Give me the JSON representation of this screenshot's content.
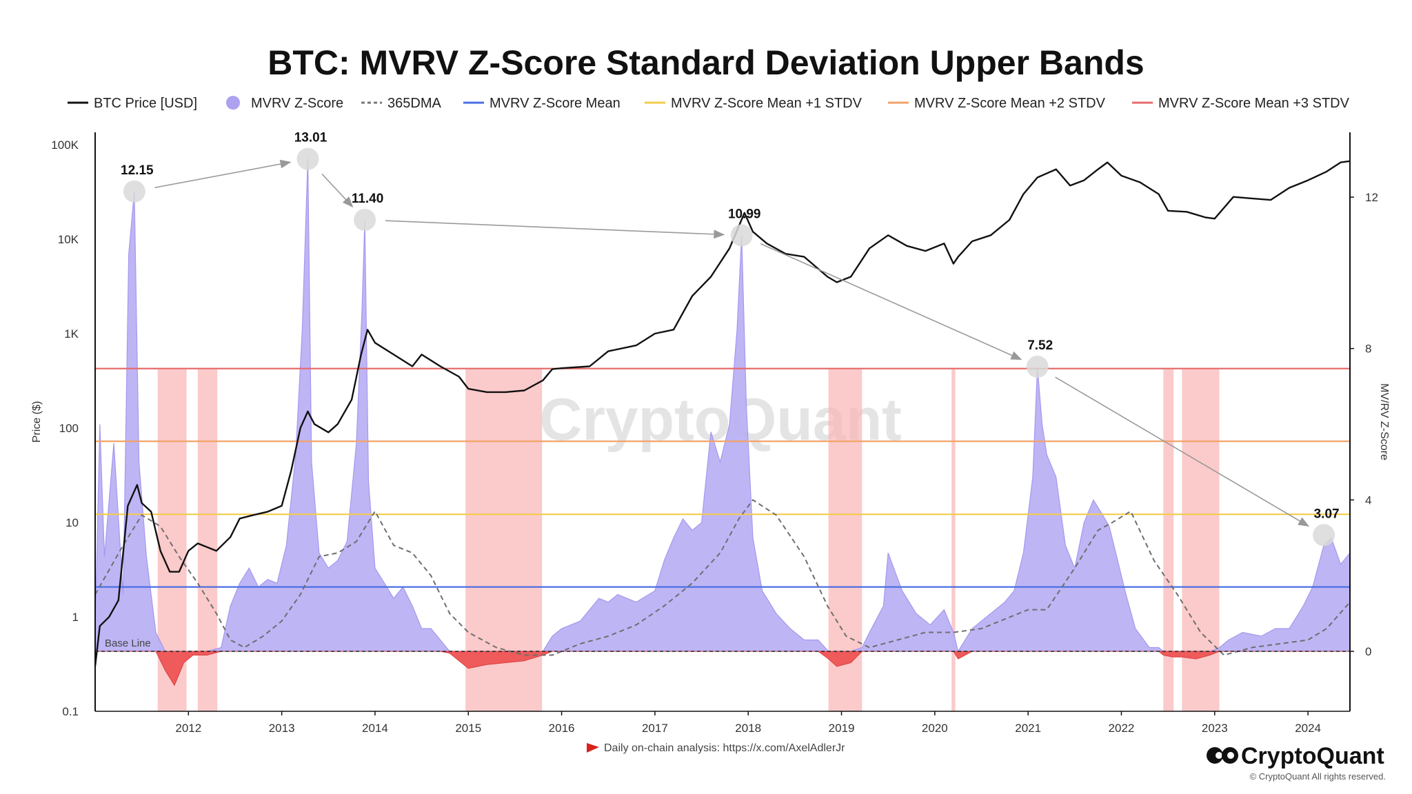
{
  "chart_data": {
    "type": "line",
    "title": "BTC: MVRV Z-Score Standard Deviation Upper Bands",
    "ylabel_left": "Price ($)",
    "ylabel_right": "MV/RV Z-Score",
    "y_left_ticks": [
      "0.1",
      "1",
      "10",
      "100",
      "1K",
      "10K",
      "100K"
    ],
    "y_left_range": [
      0.1,
      100000
    ],
    "y_left_scale": "log",
    "y_right_ticks": [
      "0",
      "4",
      "8",
      "12"
    ],
    "y_right_range": [
      -1.6,
      13.8
    ],
    "x_ticks": [
      "2012",
      "2013",
      "2014",
      "2015",
      "2016",
      "2017",
      "2018",
      "2019",
      "2020",
      "2021",
      "2022",
      "2023",
      "2024"
    ],
    "x_range": [
      2011.0,
      2024.45
    ],
    "legend": [
      {
        "label": "BTC Price [USD]",
        "color": "#111111",
        "style": "line"
      },
      {
        "label": "MVRV Z-Score",
        "color": "#ada2f0",
        "style": "dot"
      },
      {
        "label": "365DMA",
        "color": "#777777",
        "style": "dashed"
      },
      {
        "label": "MVRV Z-Score Mean",
        "color": "#4a6fe3",
        "style": "line"
      },
      {
        "label": "MVRV Z-Score Mean +1 STDV",
        "color": "#f2cc4b",
        "style": "line"
      },
      {
        "label": "MVRV Z-Score Mean +2 STDV",
        "color": "#f2a268",
        "style": "line"
      },
      {
        "label": "MVRV Z-Score Mean +3 STDV",
        "color": "#e56c6c",
        "style": "line"
      }
    ],
    "horizontal_bands": [
      {
        "name": "MVRV Z-Score Mean",
        "value": 1.7,
        "color": "#4a6fe3"
      },
      {
        "name": "MVRV Z-Score Mean +1 STDV",
        "value": 3.62,
        "color": "#f2cc4b"
      },
      {
        "name": "MVRV Z-Score Mean +2 STDV",
        "value": 5.55,
        "color": "#f2a268"
      },
      {
        "name": "MVRV Z-Score Mean +3 STDV",
        "value": 7.47,
        "color": "#e56c6c"
      }
    ],
    "base_line": {
      "label": "Base Line",
      "value": 0
    },
    "peaks": [
      {
        "label": "12.15",
        "x": 2011.42,
        "value": 12.15
      },
      {
        "label": "13.01",
        "x": 2013.28,
        "value": 13.01
      },
      {
        "label": "11.40",
        "x": 2013.89,
        "value": 11.4
      },
      {
        "label": "10.99",
        "x": 2017.93,
        "value": 10.99
      },
      {
        "label": "7.52",
        "x": 2021.1,
        "value": 7.52
      },
      {
        "label": "3.07",
        "x": 2024.17,
        "value": 3.07
      }
    ],
    "red_zones": [
      [
        2011.67,
        2011.98
      ],
      [
        2012.1,
        2012.31
      ],
      [
        2014.97,
        2015.79
      ],
      [
        2018.86,
        2019.22
      ],
      [
        2020.18,
        2020.22
      ],
      [
        2022.45,
        2022.56
      ],
      [
        2022.65,
        2023.05
      ]
    ],
    "mvrv_series": {
      "x": [
        2011.0,
        2011.05,
        2011.1,
        2011.2,
        2011.3,
        2011.36,
        2011.42,
        2011.47,
        2011.55,
        2011.65,
        2011.75,
        2011.85,
        2011.95,
        2012.05,
        2012.2,
        2012.35,
        2012.45,
        2012.55,
        2012.65,
        2012.75,
        2012.85,
        2012.95,
        2013.05,
        2013.15,
        2013.22,
        2013.28,
        2013.32,
        2013.4,
        2013.5,
        2013.6,
        2013.7,
        2013.8,
        2013.86,
        2013.89,
        2013.93,
        2014.0,
        2014.1,
        2014.2,
        2014.3,
        2014.4,
        2014.5,
        2014.6,
        2014.7,
        2014.8,
        2014.9,
        2015.0,
        2015.2,
        2015.4,
        2015.6,
        2015.8,
        2015.9,
        2016.0,
        2016.2,
        2016.4,
        2016.5,
        2016.6,
        2016.8,
        2017.0,
        2017.1,
        2017.2,
        2017.3,
        2017.4,
        2017.5,
        2017.6,
        2017.7,
        2017.8,
        2017.88,
        2017.93,
        2017.98,
        2018.05,
        2018.15,
        2018.3,
        2018.45,
        2018.6,
        2018.75,
        2018.86,
        2018.95,
        2019.1,
        2019.22,
        2019.3,
        2019.45,
        2019.5,
        2019.65,
        2019.8,
        2019.95,
        2020.1,
        2020.2,
        2020.25,
        2020.4,
        2020.6,
        2020.75,
        2020.85,
        2020.95,
        2021.05,
        2021.1,
        2021.15,
        2021.2,
        2021.3,
        2021.4,
        2021.5,
        2021.6,
        2021.7,
        2021.8,
        2021.87,
        2021.95,
        2022.05,
        2022.15,
        2022.3,
        2022.4,
        2022.45,
        2022.55,
        2022.65,
        2022.8,
        2022.95,
        2023.05,
        2023.15,
        2023.3,
        2023.5,
        2023.65,
        2023.8,
        2023.95,
        2024.05,
        2024.17,
        2024.25,
        2024.35,
        2024.45
      ],
      "y": [
        0.6,
        6.0,
        2.5,
        5.5,
        1.5,
        10.5,
        12.15,
        5.0,
        2.5,
        0.5,
        -0.5,
        -0.9,
        -0.3,
        -0.1,
        -0.1,
        0.1,
        1.2,
        1.8,
        2.2,
        1.7,
        1.9,
        1.8,
        2.8,
        5.2,
        8.5,
        13.01,
        5.0,
        2.6,
        2.2,
        2.4,
        2.9,
        5.5,
        9.0,
        11.4,
        4.5,
        2.2,
        1.8,
        1.4,
        1.7,
        1.2,
        0.6,
        0.6,
        0.3,
        -0.05,
        -0.25,
        -0.45,
        -0.35,
        -0.3,
        -0.25,
        -0.1,
        0.4,
        0.6,
        0.8,
        1.4,
        1.3,
        1.5,
        1.3,
        1.6,
        2.4,
        3.0,
        3.5,
        3.2,
        3.4,
        5.8,
        5.0,
        6.0,
        8.5,
        10.99,
        6.5,
        3.0,
        1.6,
        1.0,
        0.6,
        0.3,
        0.3,
        -0.2,
        -0.4,
        -0.3,
        0.1,
        0.5,
        1.2,
        2.6,
        1.6,
        1.0,
        0.7,
        1.1,
        0.5,
        -0.2,
        0.6,
        1.0,
        1.3,
        1.6,
        2.6,
        4.6,
        7.52,
        6.0,
        5.2,
        4.6,
        2.8,
        2.2,
        3.4,
        4.0,
        3.6,
        3.3,
        2.5,
        1.5,
        0.6,
        0.1,
        0.1,
        -0.1,
        -0.15,
        -0.15,
        -0.2,
        -0.1,
        0.1,
        0.3,
        0.5,
        0.4,
        0.6,
        0.6,
        1.2,
        1.7,
        2.8,
        3.0,
        2.3,
        2.6
      ]
    },
    "dma_series": {
      "x": [
        2011.0,
        2011.3,
        2011.5,
        2011.7,
        2011.9,
        2012.1,
        2012.3,
        2012.45,
        2012.6,
        2012.8,
        2013.0,
        2013.2,
        2013.4,
        2013.6,
        2013.8,
        2014.0,
        2014.2,
        2014.4,
        2014.6,
        2014.8,
        2015.0,
        2015.3,
        2015.6,
        2015.9,
        2016.2,
        2016.5,
        2016.8,
        2017.1,
        2017.4,
        2017.7,
        2017.9,
        2018.05,
        2018.3,
        2018.6,
        2018.85,
        2019.05,
        2019.3,
        2019.6,
        2019.9,
        2020.2,
        2020.5,
        2020.8,
        2021.0,
        2021.2,
        2021.5,
        2021.75,
        2021.9,
        2022.1,
        2022.35,
        2022.6,
        2022.85,
        2023.1,
        2023.4,
        2023.7,
        2024.0,
        2024.2,
        2024.45
      ],
      "y": [
        1.5,
        2.8,
        3.6,
        3.3,
        2.5,
        1.8,
        1.0,
        0.3,
        0.1,
        0.4,
        0.8,
        1.5,
        2.5,
        2.6,
        2.9,
        3.7,
        2.8,
        2.6,
        2.0,
        1.0,
        0.5,
        0.1,
        -0.1,
        -0.1,
        0.2,
        0.4,
        0.7,
        1.2,
        1.8,
        2.6,
        3.5,
        4.0,
        3.6,
        2.5,
        1.2,
        0.4,
        0.1,
        0.3,
        0.5,
        0.5,
        0.6,
        0.9,
        1.1,
        1.1,
        2.2,
        3.2,
        3.4,
        3.7,
        2.4,
        1.5,
        0.5,
        -0.1,
        0.1,
        0.2,
        0.3,
        0.6,
        1.3
      ]
    },
    "price_series": {
      "x": [
        2011.0,
        2011.05,
        2011.15,
        2011.25,
        2011.35,
        2011.45,
        2011.5,
        2011.6,
        2011.7,
        2011.8,
        2011.9,
        2012.0,
        2012.1,
        2012.3,
        2012.45,
        2012.55,
        2012.7,
        2012.85,
        2013.0,
        2013.1,
        2013.2,
        2013.28,
        2013.35,
        2013.5,
        2013.6,
        2013.75,
        2013.85,
        2013.92,
        2014.0,
        2014.2,
        2014.4,
        2014.5,
        2014.7,
        2014.9,
        2015.0,
        2015.2,
        2015.4,
        2015.6,
        2015.8,
        2015.9,
        2016.0,
        2016.3,
        2016.5,
        2016.8,
        2017.0,
        2017.2,
        2017.4,
        2017.6,
        2017.8,
        2017.96,
        2018.05,
        2018.2,
        2018.4,
        2018.6,
        2018.85,
        2018.95,
        2019.1,
        2019.3,
        2019.5,
        2019.7,
        2019.9,
        2020.1,
        2020.2,
        2020.25,
        2020.4,
        2020.6,
        2020.8,
        2020.95,
        2021.1,
        2021.3,
        2021.45,
        2021.6,
        2021.75,
        2021.85,
        2022.0,
        2022.2,
        2022.4,
        2022.5,
        2022.7,
        2022.9,
        2023.0,
        2023.2,
        2023.4,
        2023.6,
        2023.8,
        2024.0,
        2024.2,
        2024.35,
        2024.45
      ],
      "y": [
        0.3,
        0.8,
        1.0,
        1.5,
        15,
        25,
        16,
        13,
        5,
        3,
        3,
        5,
        6,
        5,
        7,
        11,
        12,
        13,
        15,
        35,
        100,
        150,
        110,
        90,
        110,
        200,
        600,
        1100,
        800,
        600,
        450,
        600,
        450,
        350,
        260,
        240,
        240,
        250,
        320,
        420,
        430,
        450,
        650,
        750,
        1000,
        1100,
        2500,
        4000,
        8000,
        19000,
        12000,
        9000,
        7000,
        6500,
        4000,
        3500,
        4000,
        8000,
        11000,
        8500,
        7500,
        9000,
        5500,
        6500,
        9500,
        11000,
        16000,
        30000,
        45000,
        55000,
        37000,
        42000,
        55000,
        65000,
        47000,
        40000,
        30000,
        20000,
        19500,
        17000,
        16500,
        28000,
        27000,
        26000,
        35000,
        42000,
        52000,
        65000,
        67000
      ]
    },
    "source_note": "Daily on-chain analysis: https://x.com/AxelAdlerJr",
    "watermark": "CryptoQuant"
  },
  "branding": {
    "name": "CryptoQuant",
    "copyright": "© CryptoQuant All rights reserved."
  }
}
